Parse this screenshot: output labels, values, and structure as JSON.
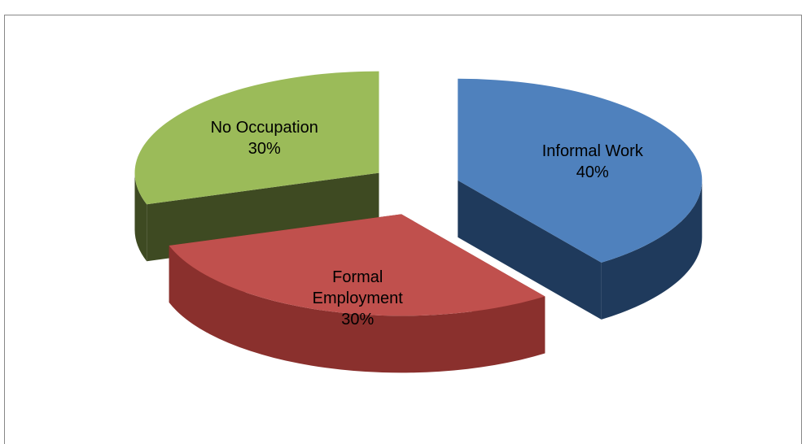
{
  "chart_data": {
    "type": "pie",
    "categories": [
      "Informal Work",
      "Formal Employment",
      "No Occupation"
    ],
    "values": [
      40,
      30,
      30
    ],
    "value_labels": [
      "40%",
      "30%",
      "30%"
    ],
    "colors": [
      "#4f81bd",
      "#c0504d",
      "#9bbb59"
    ],
    "side_colors": [
      "#1f3a5c",
      "#8a302d",
      "#3e4a22"
    ]
  }
}
